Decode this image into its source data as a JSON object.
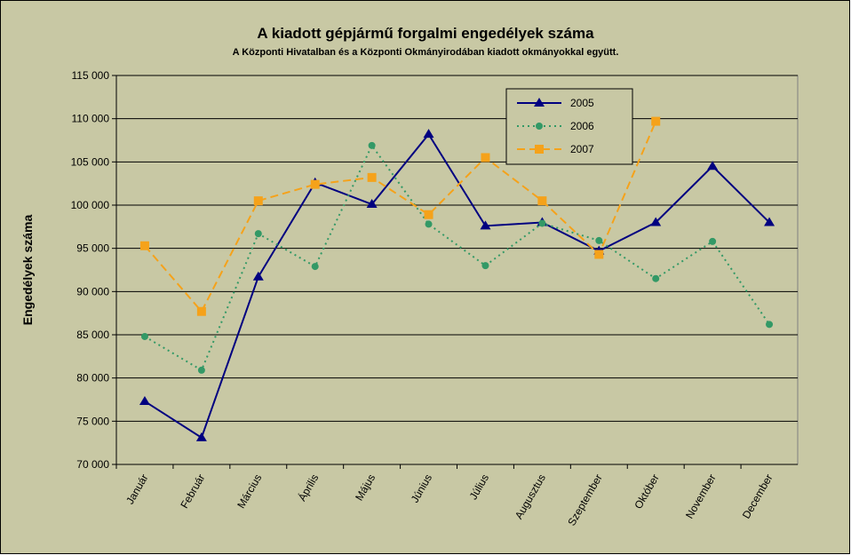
{
  "chart_data": {
    "type": "line",
    "title": "A  kiadott gépjármű forgalmi engedélyek száma",
    "subtitle": "A  Központi Hivatalban és a Központi Okmányirodában kiadott okmányokkal együtt.",
    "y_label": "Engedélyek száma",
    "categories": [
      "Január",
      "Február",
      "Március",
      "Április",
      "Május",
      "Június",
      "Július",
      "Augusztus",
      "Szeptember",
      "Október",
      "November",
      "December"
    ],
    "series": [
      {
        "name": "2005",
        "color": "#000080",
        "marker": "triangle",
        "dash": "solid",
        "values": [
          77300,
          73100,
          91700,
          102600,
          100100,
          108200,
          97600,
          98000,
          94700,
          98000,
          104500,
          98000
        ]
      },
      {
        "name": "2006",
        "color": "#339966",
        "marker": "circle",
        "dash": "dotted",
        "values": [
          84800,
          80900,
          96700,
          92900,
          106900,
          97800,
          93000,
          97900,
          95900,
          91500,
          95800,
          86200
        ]
      },
      {
        "name": "2007",
        "color": "#f5a21a",
        "marker": "square",
        "dash": "dashed",
        "values": [
          95300,
          87700,
          100500,
          102400,
          103200,
          98900,
          105500,
          100500,
          94300,
          109700,
          null,
          null
        ]
      }
    ],
    "ylim": [
      70000,
      115000
    ],
    "yticks": [
      {
        "value": 70000,
        "label": "70 000"
      },
      {
        "value": 75000,
        "label": "75 000"
      },
      {
        "value": 80000,
        "label": "80 000"
      },
      {
        "value": 85000,
        "label": "85 000"
      },
      {
        "value": 90000,
        "label": "90 000"
      },
      {
        "value": 95000,
        "label": "95 000"
      },
      {
        "value": 100000,
        "label": "100 000"
      },
      {
        "value": 105000,
        "label": "105 000"
      },
      {
        "value": 110000,
        "label": "110 000"
      },
      {
        "value": 115000,
        "label": "115 000"
      }
    ],
    "grid": true,
    "legend": "top-right"
  }
}
